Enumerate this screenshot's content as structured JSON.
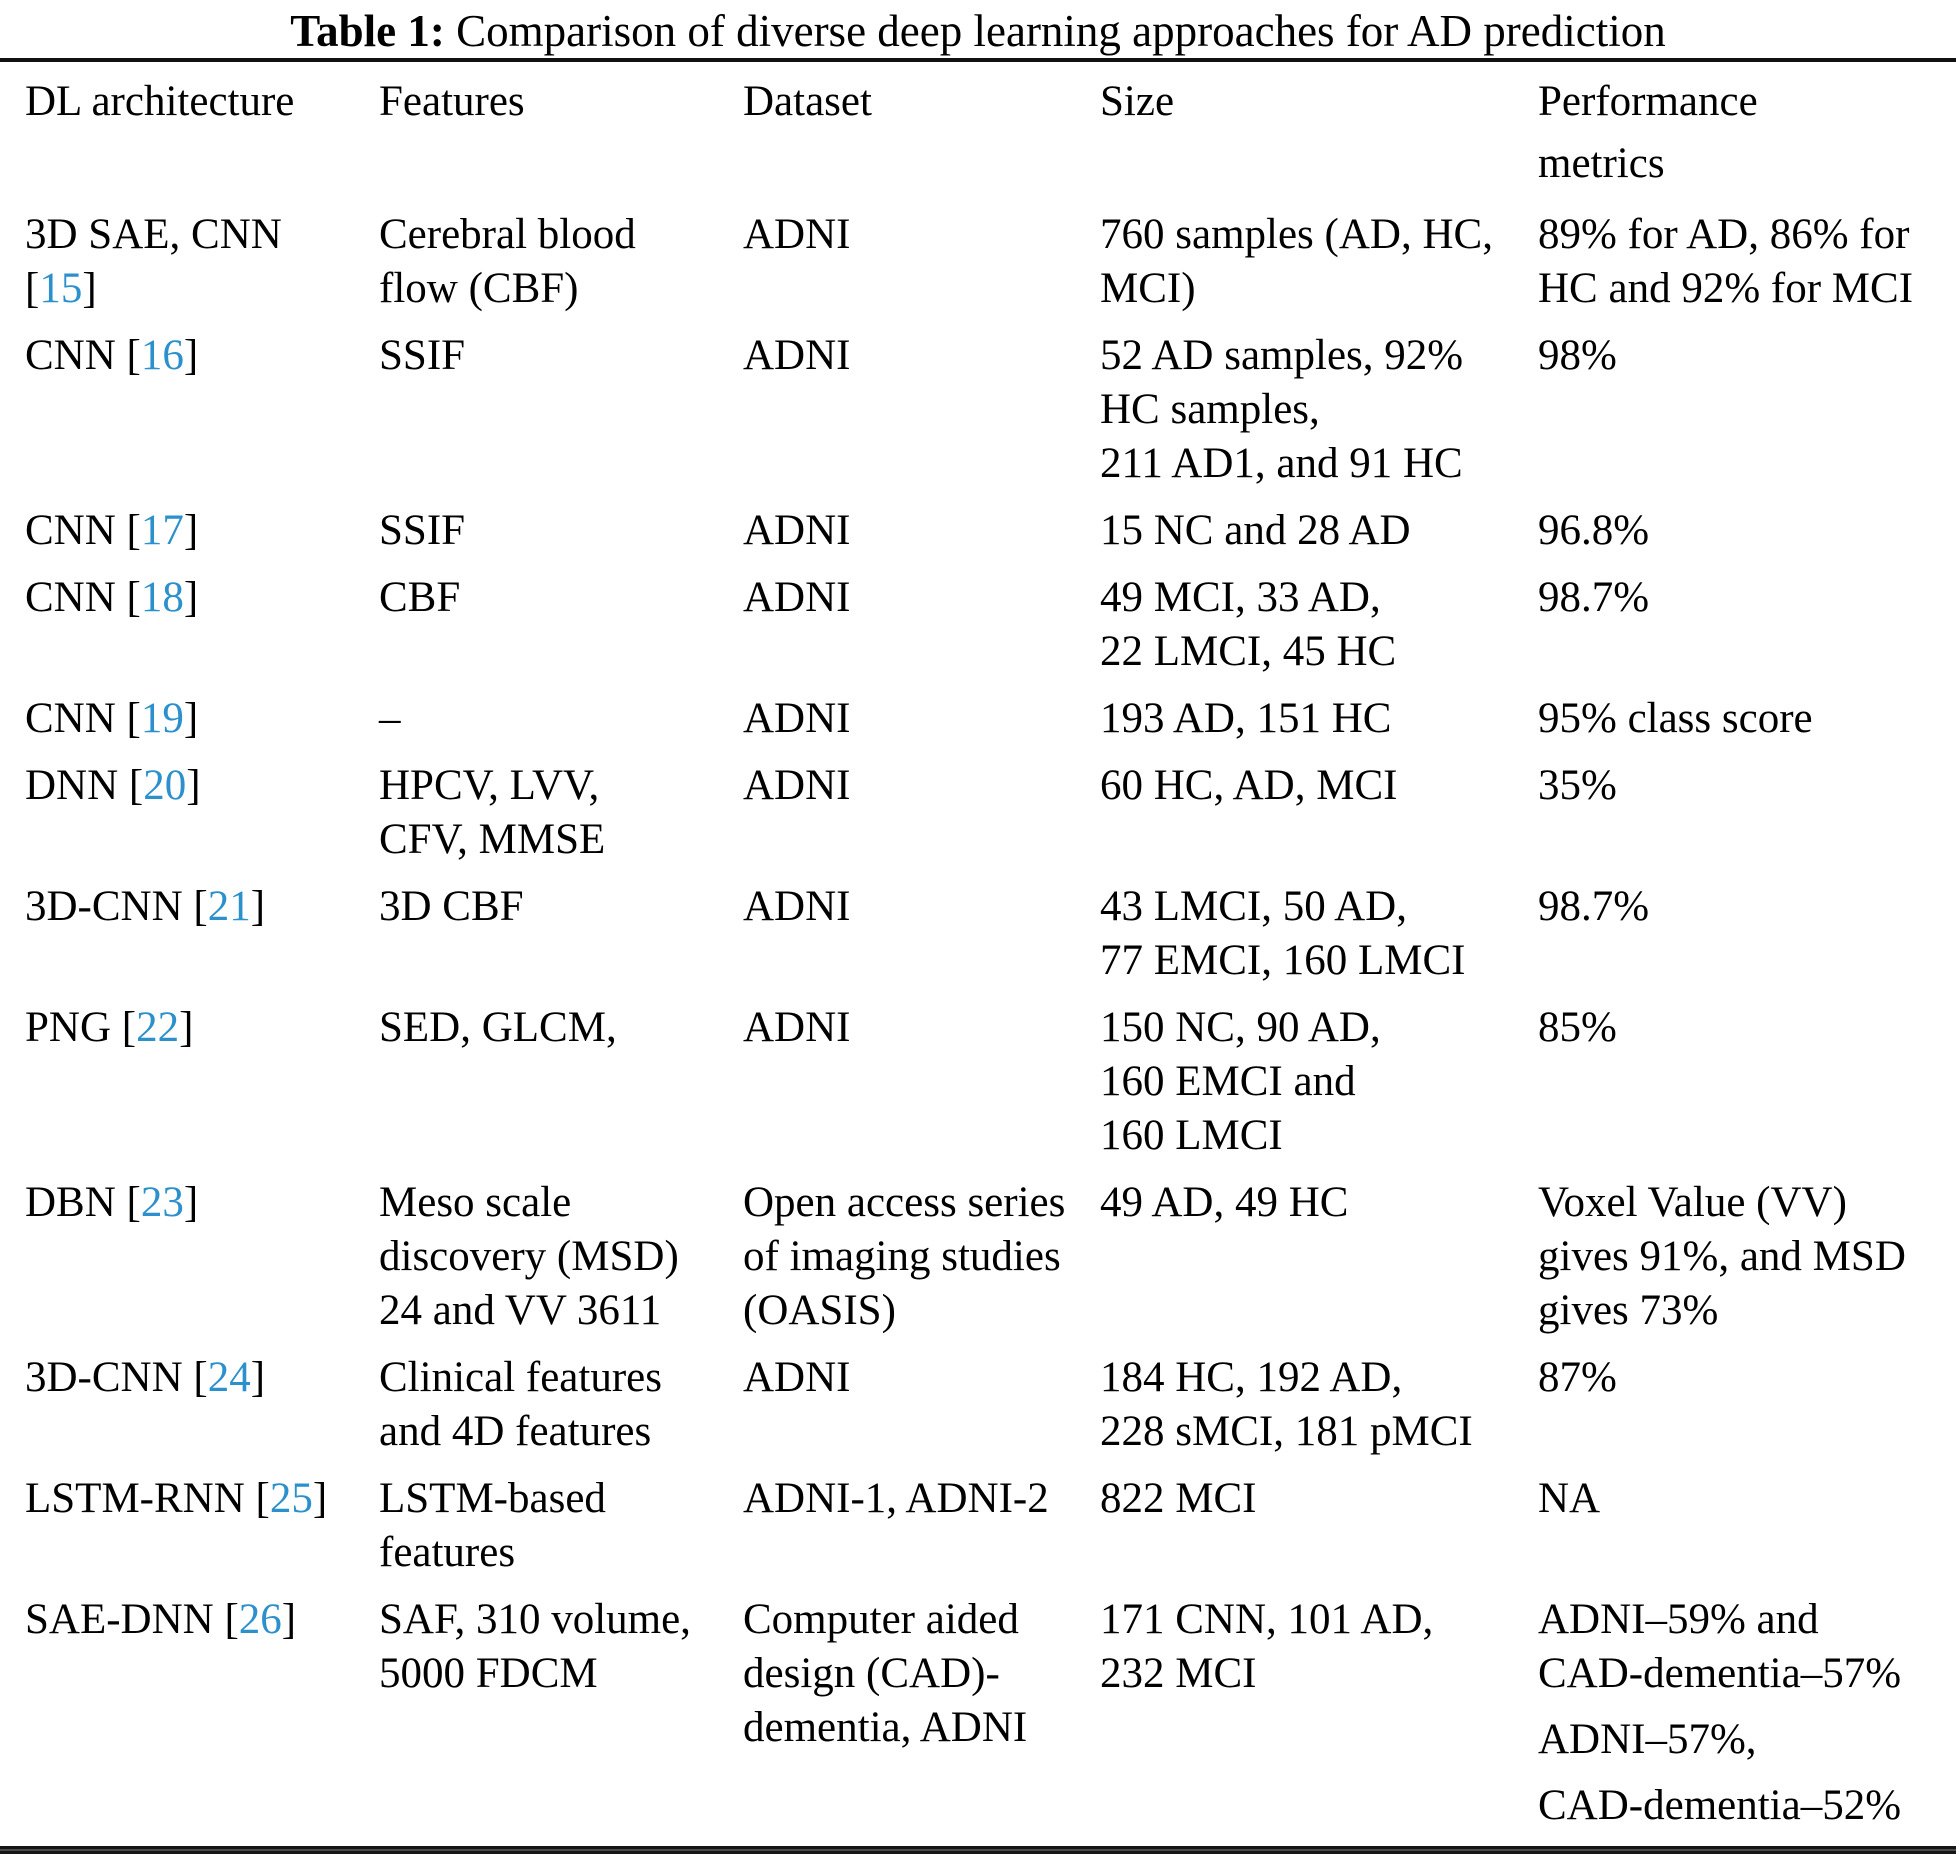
{
  "title": {
    "label": "Table 1:",
    "text": " Comparison of diverse deep learning approaches for AD prediction"
  },
  "accent_color": "#2B90CC",
  "columns": {
    "architecture": "DL architecture",
    "features": "Features",
    "dataset": "Dataset",
    "size": "Size",
    "performance": "Performance\nmetrics"
  },
  "rows": [
    {
      "arch_prefix": "3D SAE, CNN\n",
      "ref": "15",
      "features": [
        "Cerebral blood\nflow (CBF)"
      ],
      "dataset": [
        "ADNI"
      ],
      "size": [
        "760 samples (AD, HC,\nMCI)"
      ],
      "performance": [
        "89% for AD, 86% for\nHC and 92% for MCI"
      ]
    },
    {
      "arch_prefix": "CNN ",
      "ref": "16",
      "features": [
        "SSIF"
      ],
      "dataset": [
        "ADNI"
      ],
      "size": [
        "52 AD samples, 92%\nHC samples,\n211 AD1, and 91 HC"
      ],
      "performance": [
        "98%"
      ]
    },
    {
      "arch_prefix": "CNN ",
      "ref": "17",
      "features": [
        "SSIF"
      ],
      "dataset": [
        "ADNI"
      ],
      "size": [
        "15 NC and 28 AD"
      ],
      "performance": [
        "96.8%"
      ]
    },
    {
      "arch_prefix": "CNN ",
      "ref": "18",
      "features": [
        "CBF"
      ],
      "dataset": [
        "ADNI"
      ],
      "size": [
        "49 MCI, 33 AD,\n22 LMCI, 45 HC"
      ],
      "performance": [
        "98.7%"
      ]
    },
    {
      "arch_prefix": "CNN ",
      "ref": "19",
      "features": [
        "–"
      ],
      "dataset": [
        "ADNI"
      ],
      "size": [
        "193 AD, 151 HC"
      ],
      "performance": [
        "95% class score"
      ]
    },
    {
      "arch_prefix": "DNN ",
      "ref": "20",
      "features": [
        "HPCV, LVV,\nCFV, MMSE"
      ],
      "dataset": [
        "ADNI"
      ],
      "size": [
        "60 HC, AD, MCI"
      ],
      "performance": [
        "35%"
      ]
    },
    {
      "arch_prefix": "3D-CNN ",
      "ref": "21",
      "features": [
        "3D CBF"
      ],
      "dataset": [
        "ADNI"
      ],
      "size": [
        "43 LMCI, 50 AD,\n77 EMCI, 160 LMCI"
      ],
      "performance": [
        "98.7%"
      ]
    },
    {
      "arch_prefix": "PNG ",
      "ref": "22",
      "features": [
        "SED, GLCM,"
      ],
      "dataset": [
        "ADNI"
      ],
      "size": [
        "150 NC, 90 AD,\n160 EMCI and\n160 LMCI"
      ],
      "performance": [
        "85%"
      ]
    },
    {
      "arch_prefix": "DBN ",
      "ref": "23",
      "features": [
        "Meso scale\ndiscovery (MSD)\n24 and VV 3611"
      ],
      "dataset": [
        "Open access series\nof imaging studies\n(OASIS)"
      ],
      "size": [
        "49 AD, 49 HC"
      ],
      "performance": [
        "Voxel Value (VV)\ngives 91%, and MSD\ngives 73%"
      ]
    },
    {
      "arch_prefix": "3D-CNN ",
      "ref": "24",
      "features": [
        "Clinical features\nand 4D features"
      ],
      "dataset": [
        "ADNI"
      ],
      "size": [
        "184 HC, 192 AD,\n228 sMCI, 181 pMCI"
      ],
      "performance": [
        "87%"
      ]
    },
    {
      "arch_prefix": "LSTM-RNN ",
      "ref": "25",
      "features": [
        "LSTM-based\nfeatures"
      ],
      "dataset": [
        "ADNI-1, ADNI-2"
      ],
      "size": [
        "822 MCI"
      ],
      "performance": [
        "NA"
      ]
    },
    {
      "arch_prefix": "SAE-DNN ",
      "ref": "26",
      "features": [
        "SAF, 310 volume,\n5000 FDCM"
      ],
      "dataset": [
        "Computer aided\ndesign (CAD)-\ndementia, ADNI"
      ],
      "size": [
        "171 CNN, 101 AD,\n232 MCI"
      ],
      "performance": [
        "ADNI–59% and\nCAD-dementia–57%",
        "ADNI–57%,",
        "CAD-dementia–52%"
      ]
    }
  ]
}
